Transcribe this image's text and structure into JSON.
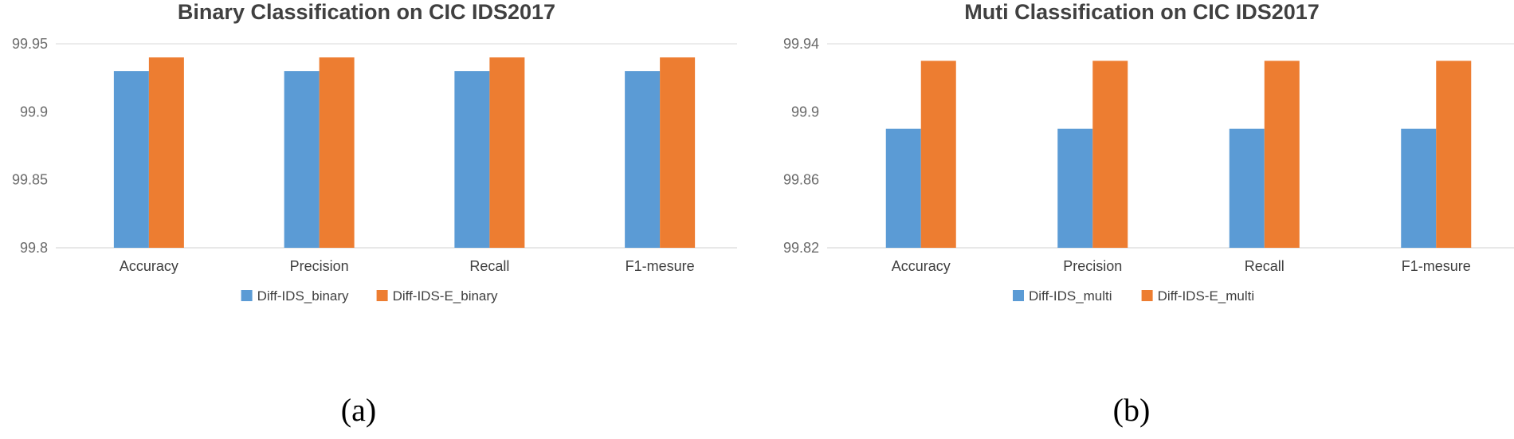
{
  "chart_data": [
    {
      "type": "bar",
      "title": "Binary Classification on CIC IDS2017",
      "panel_label": "(a)",
      "categories": [
        "Accuracy",
        "Precision",
        "Recall",
        "F1-mesure"
      ],
      "series": [
        {
          "name": "Diff-IDS_binary",
          "values": [
            99.93,
            99.93,
            99.93,
            99.93
          ],
          "color": "#5b9bd5"
        },
        {
          "name": "Diff-IDS-E_binary",
          "values": [
            99.94,
            99.94,
            99.94,
            99.94
          ],
          "color": "#ed7d31"
        }
      ],
      "ylim": [
        99.8,
        99.95
      ],
      "yticks": [
        "99.8",
        "99.85",
        "99.9",
        "99.95"
      ],
      "xlabel": "",
      "ylabel": "",
      "legend": "bottom",
      "grid": false
    },
    {
      "type": "bar",
      "title": "Muti Classification on CIC IDS2017",
      "panel_label": "(b)",
      "categories": [
        "Accuracy",
        "Precision",
        "Recall",
        "F1-mesure"
      ],
      "series": [
        {
          "name": "Diff-IDS_multi",
          "values": [
            99.89,
            99.89,
            99.89,
            99.89
          ],
          "color": "#5b9bd5"
        },
        {
          "name": "Diff-IDS-E_multi",
          "values": [
            99.93,
            99.93,
            99.93,
            99.93
          ],
          "color": "#ed7d31"
        }
      ],
      "ylim": [
        99.82,
        99.94
      ],
      "yticks": [
        "99.82",
        "99.86",
        "99.9",
        "99.94"
      ],
      "xlabel": "",
      "ylabel": "",
      "legend": "bottom",
      "grid": false
    }
  ]
}
